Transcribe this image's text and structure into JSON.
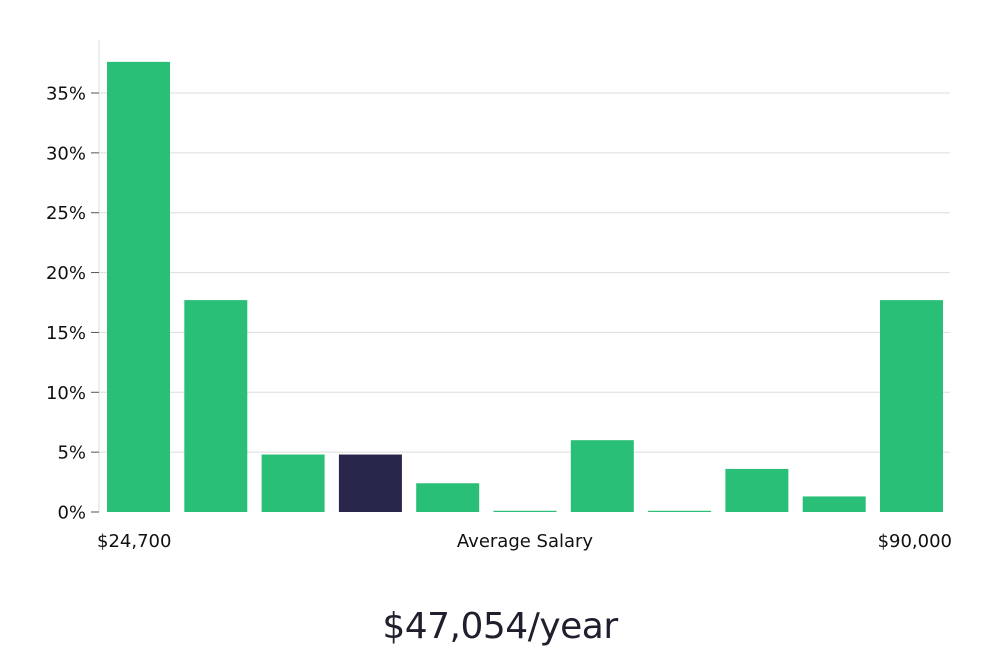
{
  "headline": "$47,054/year",
  "chart_data": {
    "type": "bar",
    "x_min_label": "$24,700",
    "x_max_label": "$90,000",
    "x_center_label": "Average Salary",
    "y_ticks": [
      "0%",
      "5%",
      "10%",
      "15%",
      "20%",
      "25%",
      "30%",
      "35%"
    ],
    "ylim": [
      0,
      39.5
    ],
    "values": [
      37.6,
      17.7,
      4.8,
      4.8,
      2.4,
      0.1,
      6.0,
      0.1,
      3.6,
      1.3,
      17.7
    ],
    "highlight_index": 3,
    "grid": true,
    "colors": {
      "bar": "#2ABF76",
      "highlight": "#28264B",
      "grid": "#DDDDDD",
      "axis": "#DDDDDD",
      "text": "#111111"
    }
  }
}
